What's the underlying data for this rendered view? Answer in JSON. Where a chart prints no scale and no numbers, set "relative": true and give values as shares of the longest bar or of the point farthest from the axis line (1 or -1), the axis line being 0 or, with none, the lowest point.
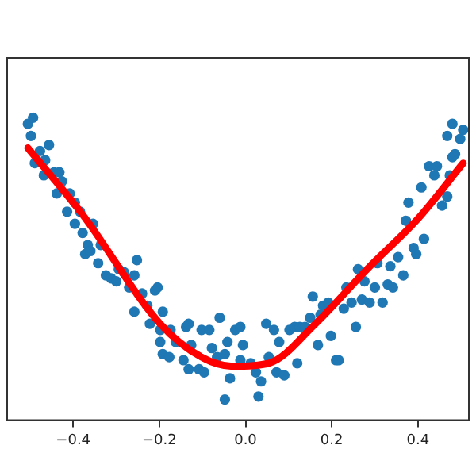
{
  "chart_data": {
    "type": "scatter",
    "relative": true,
    "grid": false,
    "legend": false,
    "xlim": [
      -0.555,
      0.52
    ],
    "xticks": [
      {
        "value": -0.4,
        "label": "−0.4"
      },
      {
        "value": -0.2,
        "label": "−0.2"
      },
      {
        "value": 0,
        "label": "0.0"
      },
      {
        "value": 0.2,
        "label": "0.2"
      },
      {
        "value": 0.4,
        "label": "0.4"
      }
    ],
    "series": [
      {
        "type": "scatter",
        "marker": "circle",
        "color": "#1f77b4",
        "x": [
          -0.505,
          -0.493,
          -0.498,
          -0.489,
          -0.477,
          -0.465,
          -0.456,
          -0.468,
          -0.444,
          -0.432,
          -0.438,
          -0.426,
          -0.408,
          -0.414,
          -0.396,
          -0.384,
          -0.396,
          -0.378,
          -0.366,
          -0.354,
          -0.372,
          -0.36,
          -0.342,
          -0.336,
          -0.324,
          -0.312,
          -0.3,
          -0.294,
          -0.282,
          -0.258,
          -0.252,
          -0.27,
          -0.24,
          -0.258,
          -0.228,
          -0.204,
          -0.21,
          -0.222,
          -0.198,
          -0.192,
          -0.174,
          -0.198,
          -0.192,
          -0.177,
          -0.162,
          -0.138,
          -0.132,
          -0.126,
          -0.144,
          -0.132,
          -0.108,
          -0.096,
          -0.102,
          -0.084,
          -0.078,
          -0.06,
          -0.066,
          -0.048,
          -0.042,
          -0.036,
          -0.048,
          -0.024,
          -0.012,
          -0.006,
          -0.012,
          0.012,
          0.024,
          0.036,
          0.03,
          0.048,
          0.054,
          0.066,
          0.078,
          0.072,
          0.09,
          0.102,
          0.114,
          0.126,
          0.12,
          0.138,
          0.15,
          0.156,
          0.168,
          0.174,
          0.18,
          0.192,
          0.198,
          0.21,
          0.216,
          0.228,
          0.234,
          0.246,
          0.256,
          0.261,
          0.27,
          0.276,
          0.288,
          0.3,
          0.306,
          0.318,
          0.33,
          0.336,
          0.342,
          0.354,
          0.366,
          0.372,
          0.378,
          0.39,
          0.396,
          0.414,
          0.408,
          0.426,
          0.438,
          0.444,
          0.456,
          0.468,
          0.474,
          0.48,
          0.486,
          0.468,
          0.48,
          0.498,
          0.505
        ],
        "values": [
          0.98,
          1,
          0.94,
          0.85,
          0.89,
          0.86,
          0.91,
          0.81,
          0.82,
          0.82,
          0.75,
          0.79,
          0.75,
          0.69,
          0.72,
          0.69,
          0.65,
          0.62,
          0.58,
          0.65,
          0.55,
          0.56,
          0.52,
          0.58,
          0.48,
          0.47,
          0.46,
          0.5,
          0.49,
          0.48,
          0.53,
          0.44,
          0.42,
          0.36,
          0.38,
          0.44,
          0.43,
          0.32,
          0.3,
          0.36,
          0.3,
          0.26,
          0.22,
          0.21,
          0.26,
          0.31,
          0.32,
          0.25,
          0.2,
          0.17,
          0.17,
          0.16,
          0.3,
          0.3,
          0.24,
          0.34,
          0.21,
          0.22,
          0.26,
          0.14,
          0.07,
          0.3,
          0.31,
          0.25,
          0.2,
          0.19,
          0.16,
          0.13,
          0.08,
          0.32,
          0.21,
          0.3,
          0.26,
          0.16,
          0.15,
          0.3,
          0.31,
          0.31,
          0.19,
          0.31,
          0.34,
          0.41,
          0.25,
          0.35,
          0.38,
          0.39,
          0.28,
          0.2,
          0.2,
          0.37,
          0.44,
          0.39,
          0.31,
          0.5,
          0.4,
          0.46,
          0.39,
          0.44,
          0.52,
          0.39,
          0.45,
          0.51,
          0.44,
          0.54,
          0.48,
          0.66,
          0.72,
          0.57,
          0.55,
          0.6,
          0.77,
          0.84,
          0.81,
          0.84,
          0.71,
          0.74,
          0.81,
          0.87,
          0.88,
          0.94,
          0.98,
          0.93,
          0.96
        ]
      },
      {
        "type": "line",
        "color": "#ff0000",
        "x": [
          -0.505,
          -0.378,
          -0.198,
          -0.102,
          -0.03,
          0.054,
          0.162,
          0.282,
          0.402,
          0.505
        ],
        "values": [
          0.9,
          0.68,
          0.32,
          0.21,
          0.18,
          0.19,
          0.32,
          0.5,
          0.67,
          0.85
        ]
      }
    ]
  }
}
